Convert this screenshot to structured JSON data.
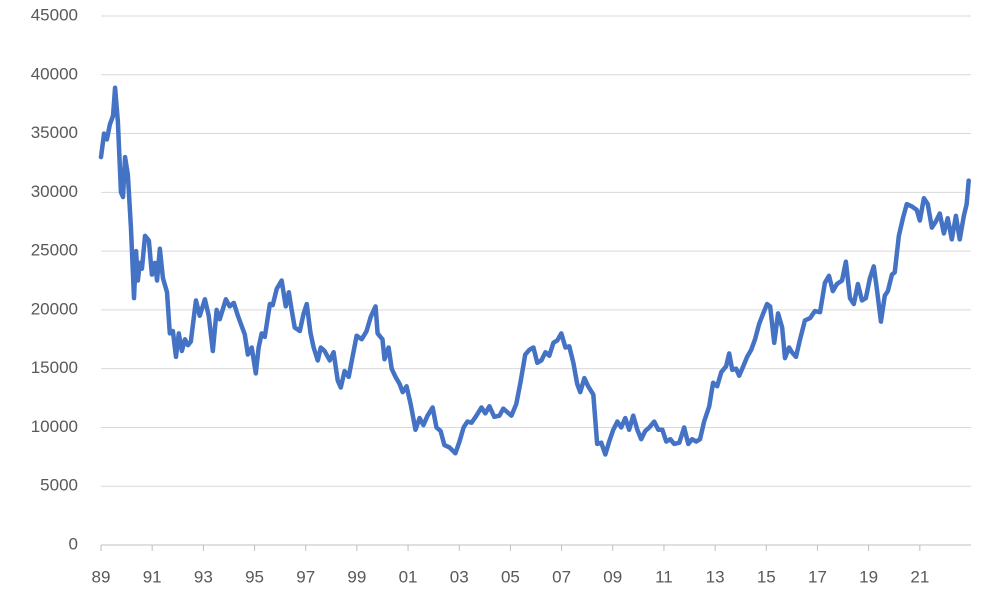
{
  "chart_data": {
    "type": "line",
    "x": [
      1989.0,
      1989.12,
      1989.23,
      1989.35,
      1989.47,
      1989.55,
      1989.66,
      1989.78,
      1989.86,
      1989.94,
      1990.05,
      1990.17,
      1990.29,
      1990.37,
      1990.44,
      1990.52,
      1990.6,
      1990.72,
      1990.87,
      1990.99,
      1991.11,
      1991.19,
      1991.3,
      1991.42,
      1991.58,
      1991.69,
      1991.81,
      1991.93,
      1992.04,
      1992.16,
      1992.28,
      1992.4,
      1992.51,
      1992.71,
      1992.86,
      1993.06,
      1993.21,
      1993.37,
      1993.52,
      1993.64,
      1993.88,
      1994.03,
      1994.19,
      1994.35,
      1994.62,
      1994.74,
      1994.89,
      1995.05,
      1995.16,
      1995.28,
      1995.4,
      1995.6,
      1995.71,
      1995.87,
      1996.06,
      1996.22,
      1996.34,
      1996.45,
      1996.57,
      1996.77,
      1996.92,
      1997.04,
      1997.19,
      1997.31,
      1997.47,
      1997.59,
      1997.74,
      1997.94,
      1998.09,
      1998.25,
      1998.37,
      1998.52,
      1998.68,
      1998.83,
      1998.99,
      1999.19,
      1999.38,
      1999.54,
      1999.73,
      1999.81,
      2000.0,
      2000.08,
      2000.24,
      2000.36,
      2000.51,
      2000.67,
      2000.79,
      2000.94,
      2001.1,
      2001.29,
      2001.45,
      2001.6,
      2001.76,
      2001.96,
      2002.11,
      2002.27,
      2002.42,
      2002.62,
      2002.85,
      2003.01,
      2003.17,
      2003.32,
      2003.48,
      2003.67,
      2003.87,
      2004.02,
      2004.18,
      2004.37,
      2004.57,
      2004.72,
      2004.88,
      2005.04,
      2005.23,
      2005.39,
      2005.58,
      2005.74,
      2005.9,
      2006.05,
      2006.21,
      2006.37,
      2006.52,
      2006.68,
      2006.83,
      2006.99,
      2007.15,
      2007.3,
      2007.46,
      2007.61,
      2007.73,
      2007.89,
      2008.04,
      2008.24,
      2008.39,
      2008.55,
      2008.71,
      2008.86,
      2009.02,
      2009.18,
      2009.33,
      2009.49,
      2009.64,
      2009.8,
      2009.96,
      2010.11,
      2010.27,
      2010.43,
      2010.62,
      2010.78,
      2010.94,
      2011.09,
      2011.25,
      2011.4,
      2011.6,
      2011.79,
      2011.95,
      2012.1,
      2012.26,
      2012.41,
      2012.57,
      2012.77,
      2012.92,
      2013.08,
      2013.24,
      2013.43,
      2013.55,
      2013.67,
      2013.82,
      2013.94,
      2014.1,
      2014.25,
      2014.41,
      2014.56,
      2014.72,
      2014.88,
      2015.03,
      2015.15,
      2015.31,
      2015.46,
      2015.62,
      2015.73,
      2015.89,
      2016.0,
      2016.16,
      2016.32,
      2016.51,
      2016.71,
      2016.9,
      2017.1,
      2017.29,
      2017.45,
      2017.6,
      2017.76,
      2017.96,
      2018.11,
      2018.27,
      2018.42,
      2018.58,
      2018.74,
      2018.89,
      2019.05,
      2019.2,
      2019.32,
      2019.48,
      2019.63,
      2019.75,
      2019.91,
      2020.02,
      2020.18,
      2020.34,
      2020.49,
      2020.69,
      2020.88,
      2021.0,
      2021.16,
      2021.31,
      2021.47,
      2021.62,
      2021.78,
      2021.94,
      2022.09,
      2022.25,
      2022.41,
      2022.56,
      2022.72,
      2022.83,
      2022.91
    ],
    "series": [
      {
        "color": "#4472c4",
        "values": [
          33000,
          35000,
          34500,
          35800,
          36500,
          38900,
          36000,
          30000,
          29600,
          33000,
          31500,
          27000,
          21000,
          25000,
          22500,
          24000,
          23500,
          26300,
          25900,
          23000,
          24000,
          22500,
          25200,
          22700,
          21500,
          18000,
          18200,
          16000,
          18000,
          16500,
          17500,
          17000,
          17300,
          20800,
          19500,
          20900,
          19500,
          16500,
          20000,
          19200,
          20900,
          20300,
          20600,
          19500,
          17900,
          16200,
          16800,
          14600,
          16800,
          18000,
          17700,
          20500,
          20400,
          21800,
          22500,
          20300,
          21500,
          20000,
          18500,
          18200,
          19700,
          20500,
          18000,
          16800,
          15700,
          16800,
          16500,
          15700,
          16400,
          14000,
          13400,
          14800,
          14300,
          16000,
          17800,
          17500,
          18200,
          19400,
          20300,
          18000,
          17500,
          15800,
          16800,
          15000,
          14300,
          13700,
          13000,
          13500,
          12000,
          9800,
          10800,
          10200,
          11000,
          11700,
          10000,
          9700,
          8500,
          8300,
          7800,
          8800,
          10000,
          10500,
          10400,
          11000,
          11700,
          11200,
          11800,
          10900,
          11000,
          11600,
          11300,
          11000,
          12000,
          13800,
          16200,
          16600,
          16800,
          15500,
          15700,
          16400,
          16100,
          17200,
          17400,
          18000,
          16800,
          16900,
          15500,
          13700,
          13000,
          14200,
          13500,
          12800,
          8600,
          8700,
          7700,
          8800,
          9800,
          10500,
          10000,
          10800,
          9800,
          11000,
          9800,
          9000,
          9700,
          10000,
          10500,
          9800,
          9800,
          8800,
          9000,
          8600,
          8700,
          10000,
          8600,
          9000,
          8800,
          9000,
          10500,
          11800,
          13800,
          13500,
          14700,
          15200,
          16300,
          14900,
          15000,
          14400,
          15200,
          16000,
          16600,
          17500,
          18800,
          19700,
          20500,
          20300,
          17200,
          19700,
          18500,
          15900,
          16800,
          16400,
          16000,
          17500,
          19100,
          19300,
          19900,
          19800,
          22300,
          22900,
          21600,
          22200,
          22500,
          24100,
          21000,
          20500,
          22200,
          20800,
          21000,
          22700,
          23700,
          21800,
          19000,
          21200,
          21600,
          23000,
          23200,
          26300,
          27800,
          29000,
          28800,
          28500,
          27600,
          29500,
          29000,
          27000,
          27500,
          28200,
          26500,
          27800,
          26000,
          28000,
          26000,
          28000,
          29000,
          31000
        ]
      }
    ],
    "xlim": [
      1989,
      2023
    ],
    "xticks": [
      {
        "value": 1989,
        "label": "89"
      },
      {
        "value": 1991,
        "label": "91"
      },
      {
        "value": 1993,
        "label": "93"
      },
      {
        "value": 1995,
        "label": "95"
      },
      {
        "value": 1997,
        "label": "97"
      },
      {
        "value": 1999,
        "label": "99"
      },
      {
        "value": 2001,
        "label": "01"
      },
      {
        "value": 2003,
        "label": "03"
      },
      {
        "value": 2005,
        "label": "05"
      },
      {
        "value": 2007,
        "label": "07"
      },
      {
        "value": 2009,
        "label": "09"
      },
      {
        "value": 2011,
        "label": "11"
      },
      {
        "value": 2013,
        "label": "13"
      },
      {
        "value": 2015,
        "label": "15"
      },
      {
        "value": 2017,
        "label": "17"
      },
      {
        "value": 2019,
        "label": "19"
      },
      {
        "value": 2021,
        "label": "21"
      }
    ],
    "ylim": [
      0,
      45000
    ],
    "yticks": [
      0,
      5000,
      10000,
      15000,
      20000,
      25000,
      30000,
      35000,
      40000,
      45000
    ],
    "grid": true
  }
}
